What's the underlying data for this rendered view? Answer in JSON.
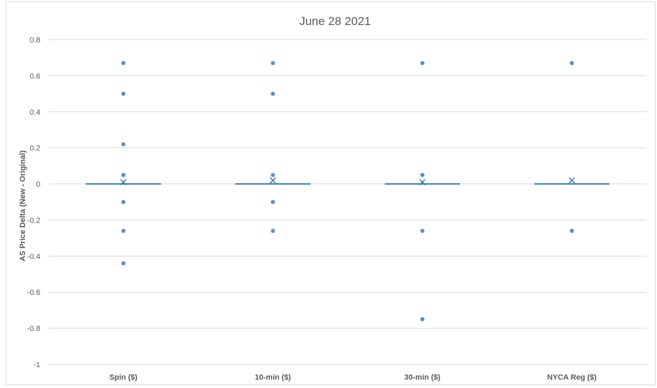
{
  "chart_data": {
    "type": "box",
    "title": "June 28 2021",
    "xlabel": "",
    "ylabel": "AS Price Delta (New - Original)",
    "ylim": [
      -1,
      0.8
    ],
    "yticks": [
      0.8,
      0.6,
      0.4,
      0.2,
      0,
      -0.2,
      -0.4,
      -0.6,
      -0.8,
      -1
    ],
    "ytick_labels": [
      "0.8",
      "0.6",
      "0.4",
      "0.2",
      "0",
      "-0.2",
      "-0.4",
      "-0.6",
      "-0.8",
      "-1"
    ],
    "grid": true,
    "legend": "none",
    "categories": [
      "Spin ($)",
      "10-min ($)",
      "30-min ($)",
      "NYCA Reg ($)"
    ],
    "series": [
      {
        "category": "Spin ($)",
        "median": 0,
        "mean": 0.01,
        "outliers": [
          0.67,
          0.5,
          0.22,
          0.05,
          -0.1,
          -0.26,
          -0.44
        ]
      },
      {
        "category": "10-min ($)",
        "median": 0,
        "mean": 0.02,
        "outliers": [
          0.67,
          0.5,
          0.05,
          -0.1,
          -0.26
        ]
      },
      {
        "category": "30-min ($)",
        "median": 0,
        "mean": 0.01,
        "outliers": [
          0.67,
          0.05,
          -0.26,
          -0.75
        ]
      },
      {
        "category": "NYCA Reg ($)",
        "median": 0,
        "mean": 0.02,
        "outliers": [
          0.67,
          -0.26
        ]
      }
    ],
    "colors": {
      "series": "#5b8fc7",
      "median_line": "#2e75b6",
      "grid": "#d9d9d9",
      "text": "#595959"
    }
  }
}
